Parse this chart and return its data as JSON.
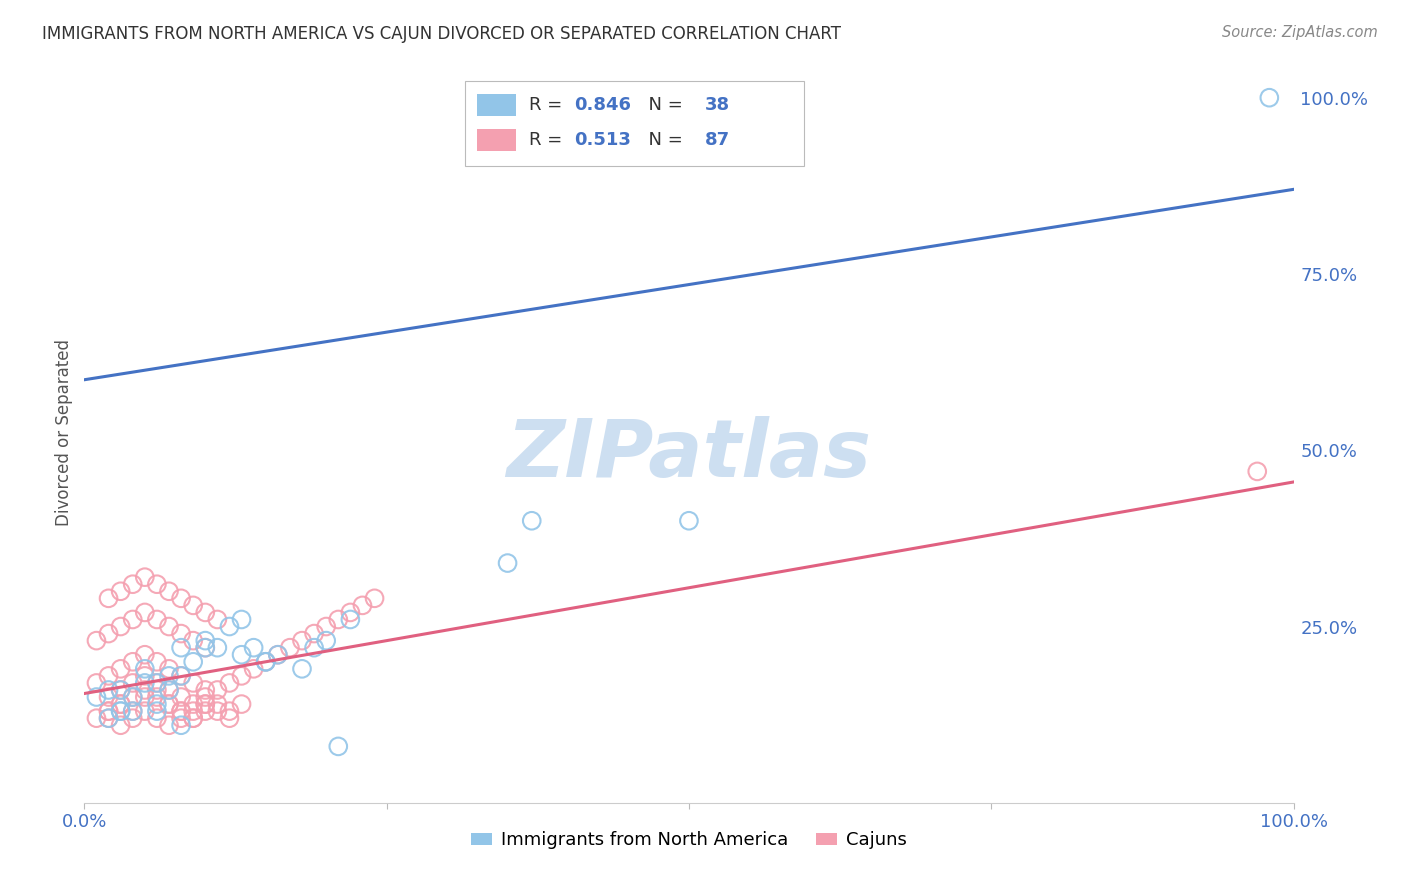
{
  "title": "IMMIGRANTS FROM NORTH AMERICA VS CAJUN DIVORCED OR SEPARATED CORRELATION CHART",
  "source": "Source: ZipAtlas.com",
  "ylabel": "Divorced or Separated",
  "legend_blue_r": "0.846",
  "legend_blue_n": "38",
  "legend_pink_r": "0.513",
  "legend_pink_n": "87",
  "legend_blue_label": "Immigrants from North America",
  "legend_pink_label": "Cajuns",
  "blue_color": "#92C5E8",
  "pink_color": "#F4A0B0",
  "blue_line_color": "#4472C4",
  "pink_line_color": "#E06080",
  "watermark_color": "#C8DCF0",
  "background_color": "#FFFFFF",
  "grid_color": "#C8C8C8",
  "blue_scatter_x": [
    0.98,
    0.01,
    0.02,
    0.03,
    0.04,
    0.05,
    0.06,
    0.07,
    0.08,
    0.03,
    0.05,
    0.06,
    0.08,
    0.1,
    0.12,
    0.15,
    0.14,
    0.13,
    0.04,
    0.06,
    0.07,
    0.09,
    0.11,
    0.13,
    0.16,
    0.18,
    0.2,
    0.22,
    0.35,
    0.37,
    0.5,
    0.02,
    0.03,
    0.19,
    0.21,
    0.08,
    0.1,
    0.15
  ],
  "blue_scatter_y": [
    1.0,
    0.15,
    0.16,
    0.13,
    0.15,
    0.17,
    0.13,
    0.16,
    0.18,
    0.16,
    0.19,
    0.14,
    0.22,
    0.23,
    0.25,
    0.2,
    0.22,
    0.21,
    0.13,
    0.17,
    0.18,
    0.2,
    0.22,
    0.26,
    0.21,
    0.19,
    0.23,
    0.26,
    0.34,
    0.4,
    0.4,
    0.12,
    0.13,
    0.22,
    0.08,
    0.11,
    0.22,
    0.2
  ],
  "pink_scatter_x": [
    0.97,
    0.01,
    0.02,
    0.03,
    0.04,
    0.05,
    0.06,
    0.07,
    0.08,
    0.09,
    0.1,
    0.01,
    0.02,
    0.03,
    0.04,
    0.05,
    0.06,
    0.07,
    0.08,
    0.09,
    0.1,
    0.01,
    0.02,
    0.03,
    0.04,
    0.05,
    0.06,
    0.07,
    0.08,
    0.09,
    0.1,
    0.02,
    0.03,
    0.04,
    0.05,
    0.06,
    0.07,
    0.08,
    0.09,
    0.1,
    0.11,
    0.02,
    0.03,
    0.04,
    0.05,
    0.06,
    0.07,
    0.08,
    0.09,
    0.1,
    0.11,
    0.12,
    0.13,
    0.02,
    0.03,
    0.04,
    0.05,
    0.06,
    0.07,
    0.08,
    0.09,
    0.1,
    0.11,
    0.12,
    0.02,
    0.03,
    0.04,
    0.05,
    0.06,
    0.07,
    0.08,
    0.09,
    0.1,
    0.11,
    0.12,
    0.13,
    0.14,
    0.15,
    0.16,
    0.17,
    0.18,
    0.19,
    0.2,
    0.21,
    0.22,
    0.23,
    0.24
  ],
  "pink_scatter_y": [
    0.47,
    0.12,
    0.13,
    0.14,
    0.13,
    0.15,
    0.16,
    0.14,
    0.13,
    0.12,
    0.14,
    0.17,
    0.18,
    0.19,
    0.2,
    0.21,
    0.2,
    0.19,
    0.18,
    0.17,
    0.16,
    0.23,
    0.24,
    0.25,
    0.26,
    0.27,
    0.26,
    0.25,
    0.24,
    0.23,
    0.22,
    0.29,
    0.3,
    0.31,
    0.32,
    0.31,
    0.3,
    0.29,
    0.28,
    0.27,
    0.26,
    0.13,
    0.14,
    0.15,
    0.16,
    0.15,
    0.14,
    0.13,
    0.12,
    0.13,
    0.14,
    0.13,
    0.14,
    0.12,
    0.11,
    0.12,
    0.13,
    0.12,
    0.11,
    0.12,
    0.13,
    0.14,
    0.13,
    0.12,
    0.15,
    0.16,
    0.17,
    0.18,
    0.17,
    0.16,
    0.15,
    0.14,
    0.15,
    0.16,
    0.17,
    0.18,
    0.19,
    0.2,
    0.21,
    0.22,
    0.23,
    0.24,
    0.25,
    0.26,
    0.27,
    0.28,
    0.29
  ],
  "blue_line_y_start": 0.6,
  "blue_line_y_end": 0.87,
  "pink_line_y_start": 0.155,
  "pink_line_y_end": 0.455,
  "xlim": [
    0.0,
    1.0
  ],
  "ylim": [
    0.0,
    1.05
  ],
  "yticks": [
    0.25,
    0.5,
    0.75,
    1.0
  ],
  "ytick_labels": [
    "25.0%",
    "50.0%",
    "75.0%",
    "100.0%"
  ],
  "xtick_positions": [
    0.0,
    0.25,
    0.5,
    0.75,
    1.0
  ],
  "xtick_labels": [
    "0.0%",
    "",
    "",
    "",
    "100.0%"
  ]
}
